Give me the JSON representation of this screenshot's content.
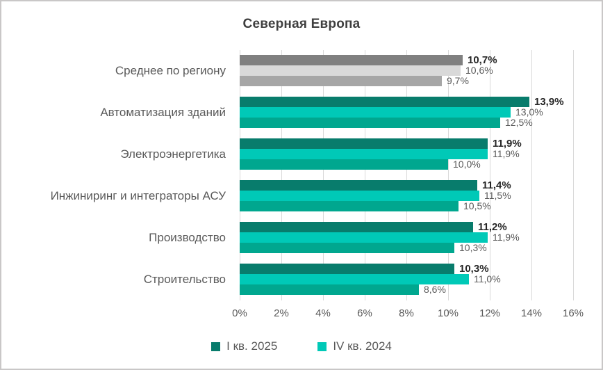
{
  "chart_data": {
    "type": "bar",
    "orientation": "horizontal",
    "title": "Северная Европа",
    "grid": true,
    "categories": [
      "Среднее по региону",
      "Автоматизация зданий",
      "Электроэнергетика",
      "Инжиниринг и интеграторы АСУ",
      "Производство",
      "Строительство"
    ],
    "series": [
      {
        "name": "I кв. 2025",
        "color": "#087c6c",
        "region_avg_color": "#808080",
        "values": [
          10.7,
          13.9,
          11.9,
          11.4,
          11.2,
          10.3
        ],
        "labels": [
          "10,7%",
          "13,9%",
          "11,9%",
          "11,4%",
          "11,2%",
          "10,3%"
        ],
        "labels_bold": true
      },
      {
        "name": "IV кв. 2024",
        "color": "#00c9b7",
        "region_avg_color": "#d9d9d9",
        "values": [
          10.6,
          13.0,
          11.9,
          11.5,
          11.9,
          11.0
        ],
        "labels": [
          "10,6%",
          "13,0%",
          "11,9%",
          "11,5%",
          "11,9%",
          "11,0%"
        ],
        "labels_bold": false
      },
      {
        "name": "",
        "color": "#00a78f",
        "region_avg_color": "#a6a6a6",
        "values": [
          9.7,
          12.5,
          10.0,
          10.5,
          10.3,
          8.6
        ],
        "labels": [
          "9,7%",
          "12,5%",
          "10,0%",
          "10,5%",
          "10,3%",
          "8,6%"
        ],
        "labels_bold": false
      }
    ],
    "x_axis": {
      "min": 0,
      "max": 16,
      "ticks": [
        "0%",
        "2%",
        "4%",
        "6%",
        "8%",
        "10%",
        "12%",
        "14%",
        "16%"
      ]
    },
    "legend": {
      "position": "bottom",
      "items": [
        {
          "label": "I кв. 2025",
          "color": "#087c6c"
        },
        {
          "label": "IV кв. 2024",
          "color": "#00c9b7"
        }
      ]
    },
    "colors": {
      "gridline": "#d9d9d9",
      "title_text": "#3f3f3f",
      "axis_text": "#595959",
      "value_text": "#595959",
      "value_text_bold": "#262626"
    }
  }
}
